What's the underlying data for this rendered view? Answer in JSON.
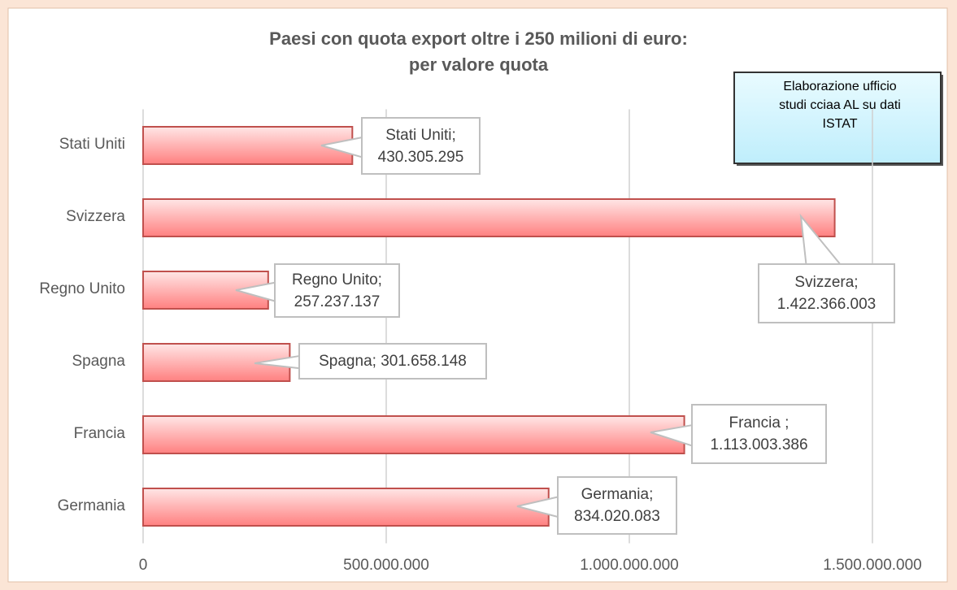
{
  "chart_data": {
    "type": "bar",
    "orientation": "horizontal",
    "title": "Paesi con quota export oltre i 250 milioni di euro:\nper valore quota",
    "annotation": "Elaborazione ufficio\nstudi cciaa AL su dati\nISTAT",
    "categories": [
      "Stati Uniti",
      "Svizzera",
      "Regno Unito",
      "Spagna",
      "Francia",
      "Germania"
    ],
    "values": [
      430305295,
      1422366003,
      257237137,
      301658148,
      1113003386,
      834020083
    ],
    "value_labels": [
      "Stati Uniti;\n430.305.295",
      "Svizzera;\n1.422.366.003",
      "Regno Unito;\n257.237.137",
      "Spagna; 301.658.148",
      "Francia ;\n1.113.003.386",
      "Germania;\n834.020.083"
    ],
    "color": "#c0504d",
    "xlim": [
      0,
      1500000000
    ],
    "xticks": [
      0,
      {
        "value": 500000000,
        "label": "500.000.000"
      },
      {
        "value": 1000000000,
        "label": "1.000.000.000"
      },
      {
        "value": 1500000000,
        "label": "1.500.000.000"
      }
    ],
    "grid": true
  }
}
